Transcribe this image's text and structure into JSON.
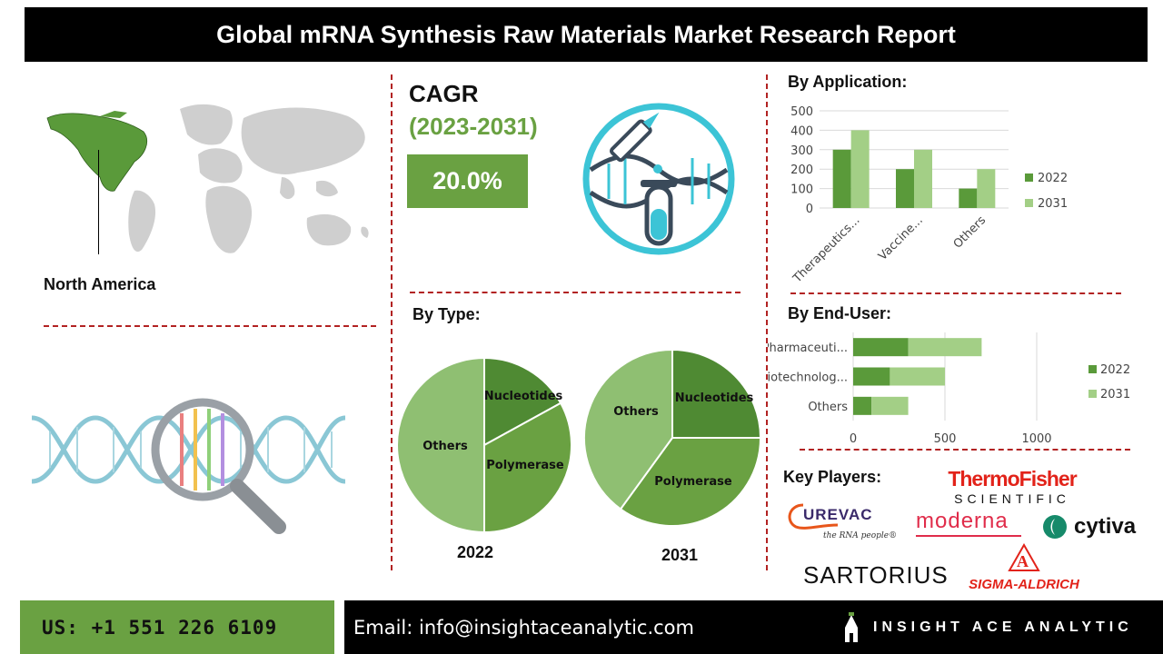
{
  "header": {
    "title": "Global mRNA Synthesis Raw Materials Market Research Report"
  },
  "region": {
    "label": "North America"
  },
  "cagr": {
    "title": "CAGR",
    "years": "(2023-2031)",
    "value": "20.0%"
  },
  "by_application": {
    "label": "By Application:"
  },
  "by_type": {
    "label": "By Type:",
    "year_a": "2022",
    "year_b": "2031"
  },
  "by_end_user": {
    "label": "By End-User:"
  },
  "key_players": {
    "label": "Key Players:",
    "logos": [
      "ThermoFisher SCIENTIFIC",
      "CUREVAC the RNA people",
      "moderna",
      "cytiva",
      "SARTORIUS",
      "SIGMA-ALDRICH"
    ]
  },
  "footer": {
    "phone": "US: +1 551 226 6109",
    "email": "Email: info@insightaceanalytic.com",
    "brand": "INSIGHT ACE ANALYTIC"
  },
  "colors": {
    "dark_green": "#5a9a3a",
    "light_green": "#a3cf86",
    "accent_green": "#6aa142",
    "divider_red": "#b22222"
  },
  "chart_data": [
    {
      "type": "bar",
      "categories": [
        "Therapeutics...",
        "Vaccine...",
        "Others"
      ],
      "series": [
        {
          "name": "2022",
          "values": [
            300,
            200,
            100
          ]
        },
        {
          "name": "2031",
          "values": [
            400,
            300,
            200
          ]
        }
      ],
      "yticks": [
        0,
        100,
        200,
        300,
        400,
        500
      ],
      "ylim": [
        0,
        500
      ],
      "grid": true,
      "legend": "right"
    },
    {
      "type": "bar",
      "orientation": "horizontal",
      "stacked": true,
      "categories": [
        "Pharmaceuti...",
        "Biotechnolog...",
        "Others"
      ],
      "series": [
        {
          "name": "2022",
          "values": [
            300,
            200,
            100
          ]
        },
        {
          "name": "2031",
          "values": [
            400,
            300,
            200
          ]
        }
      ],
      "xticks": [
        0,
        500,
        1000
      ],
      "xlim": [
        0,
        1000
      ],
      "grid": true,
      "legend": "right"
    },
    {
      "type": "pie",
      "label": "2022",
      "slices": [
        {
          "name": "Nucleotides",
          "value": 17
        },
        {
          "name": "Polymerase",
          "value": 33
        },
        {
          "name": "Others",
          "value": 50
        }
      ]
    },
    {
      "type": "pie",
      "label": "2031",
      "slices": [
        {
          "name": "Nucleotides",
          "value": 25
        },
        {
          "name": "Polymerase",
          "value": 35
        },
        {
          "name": "Others",
          "value": 40
        }
      ]
    }
  ]
}
